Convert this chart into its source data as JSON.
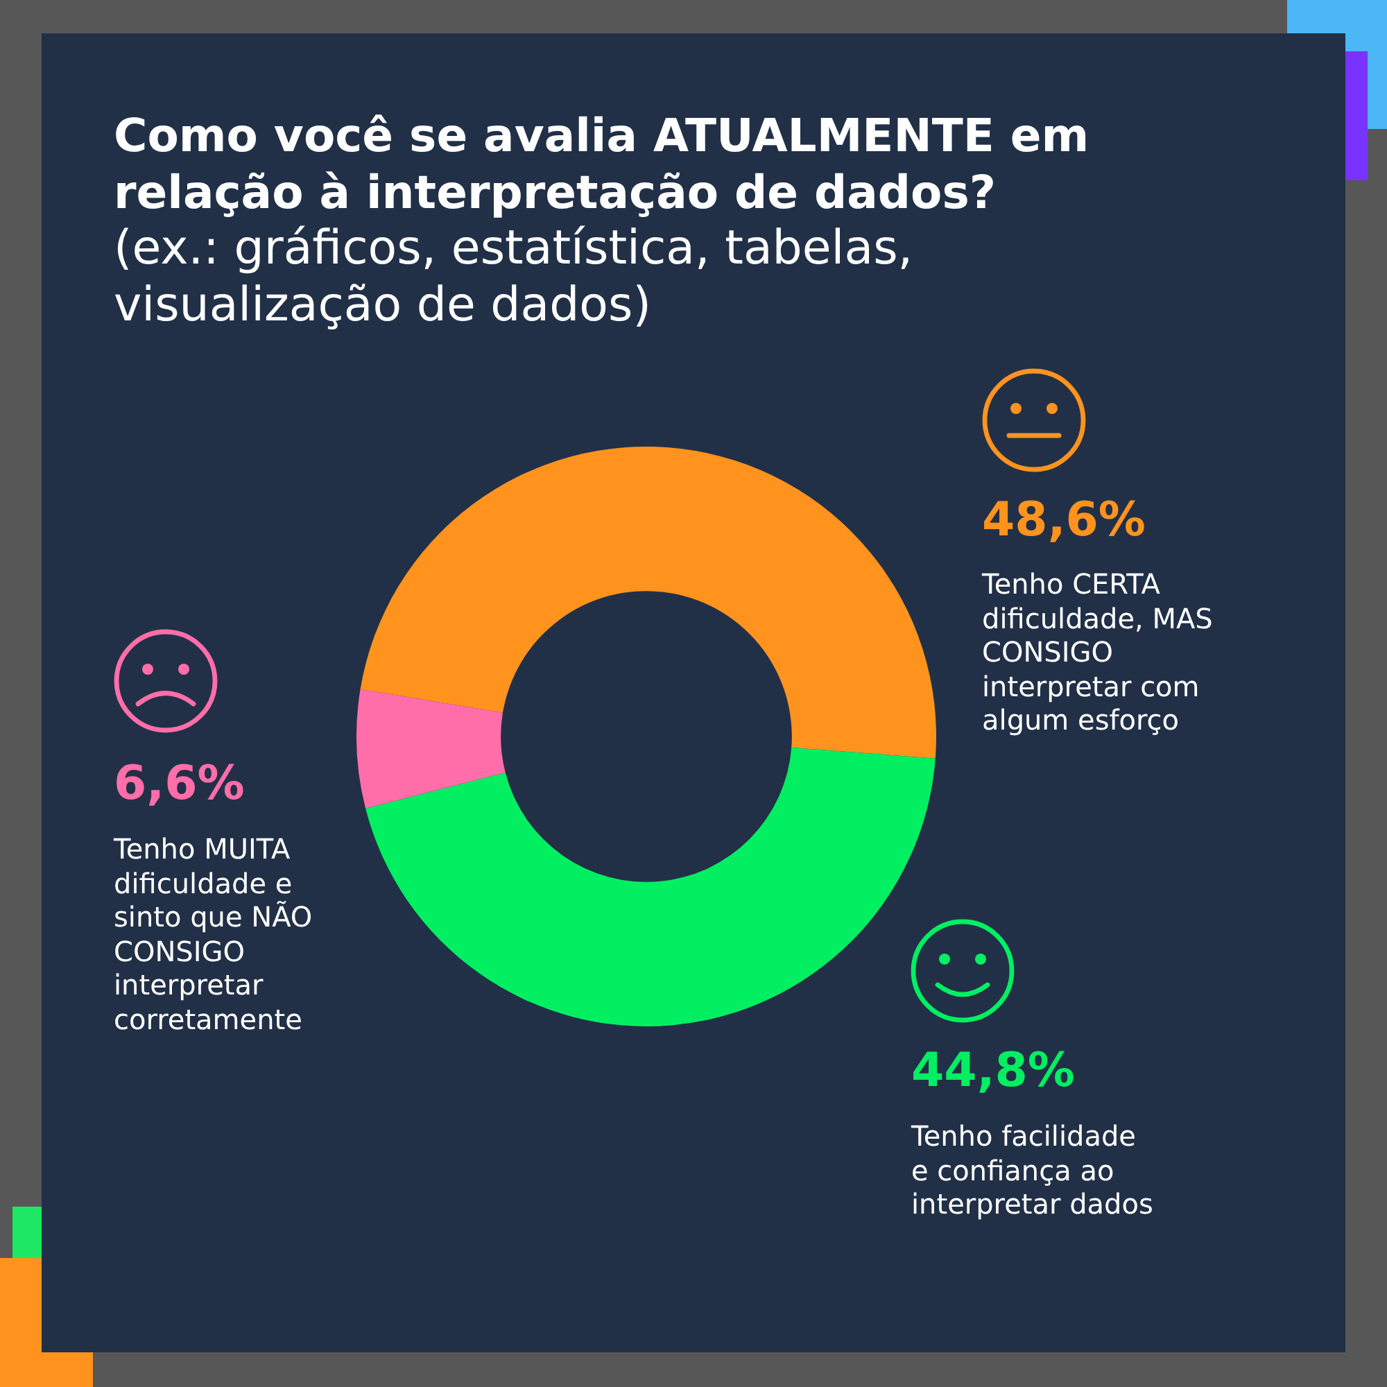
{
  "chart_data": {
    "type": "donut",
    "title": "Como você se avalia ATUALMENTE em relação à interpretação de dados?",
    "subtitle": "(ex.: gráficos, estatística, tabelas, visualização de dados)",
    "categories": [
      "Tenho CERTA dificuldade, MAS CONSIGO interpretar com algum esforço",
      "Tenho facilidade e confiança ao interpretar dados",
      "Tenho MUITA dificuldade e sinto que NÃO CONSIGO interpretar corretamente"
    ],
    "values": [
      48.6,
      44.8,
      6.6
    ],
    "colors": [
      "#ff931e",
      "#03ef62",
      "#ff6ea9"
    ],
    "value_labels": [
      "48,6%",
      "44,8%",
      "6,6%"
    ]
  }
}
